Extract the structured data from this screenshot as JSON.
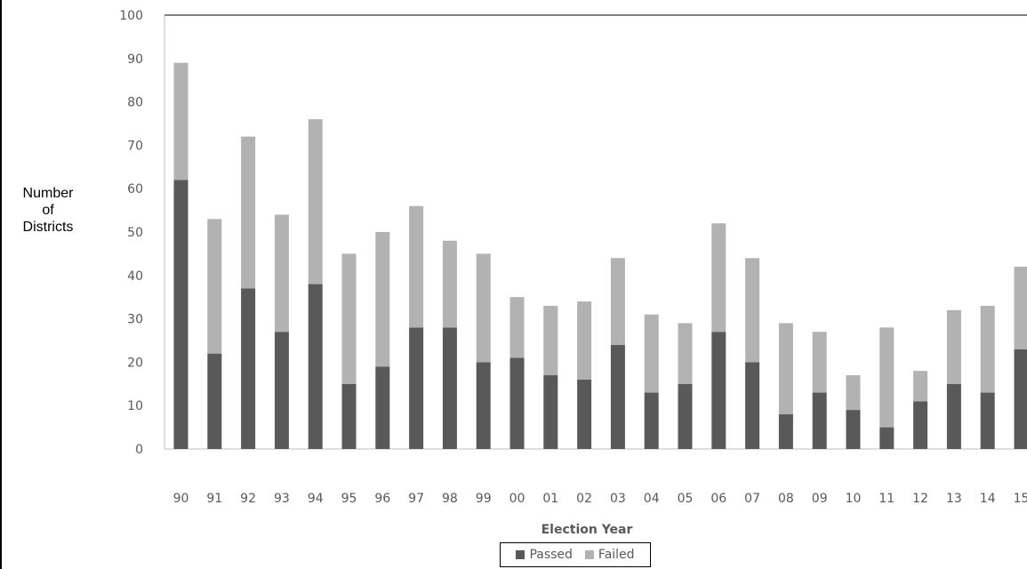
{
  "chart_data": {
    "type": "bar",
    "stacked": true,
    "title": "",
    "xlabel": "Election Year",
    "ylabel_lines": [
      "Number",
      "of",
      "Districts"
    ],
    "categories": [
      "90",
      "91",
      "92",
      "93",
      "94",
      "95",
      "96",
      "97",
      "98",
      "99",
      "00",
      "01",
      "02",
      "03",
      "04",
      "05",
      "06",
      "07",
      "08",
      "09",
      "10",
      "11",
      "12",
      "13",
      "14",
      "15"
    ],
    "series": [
      {
        "name": "Passed",
        "color": "#595959",
        "values": [
          62,
          22,
          37,
          27,
          38,
          15,
          19,
          28,
          28,
          20,
          21,
          17,
          16,
          24,
          13,
          15,
          27,
          20,
          8,
          13,
          9,
          5,
          11,
          15,
          13,
          23
        ]
      },
      {
        "name": "Failed",
        "color": "#b2b2b2",
        "values": [
          27,
          31,
          35,
          27,
          38,
          30,
          31,
          28,
          20,
          25,
          14,
          16,
          18,
          20,
          18,
          14,
          25,
          24,
          21,
          14,
          8,
          23,
          7,
          17,
          20,
          19
        ]
      }
    ],
    "ylim": [
      0,
      100
    ],
    "yticks": [
      0,
      10,
      20,
      30,
      40,
      50,
      60,
      70,
      80,
      90,
      100
    ],
    "grid": false,
    "legend_position": "bottom"
  }
}
